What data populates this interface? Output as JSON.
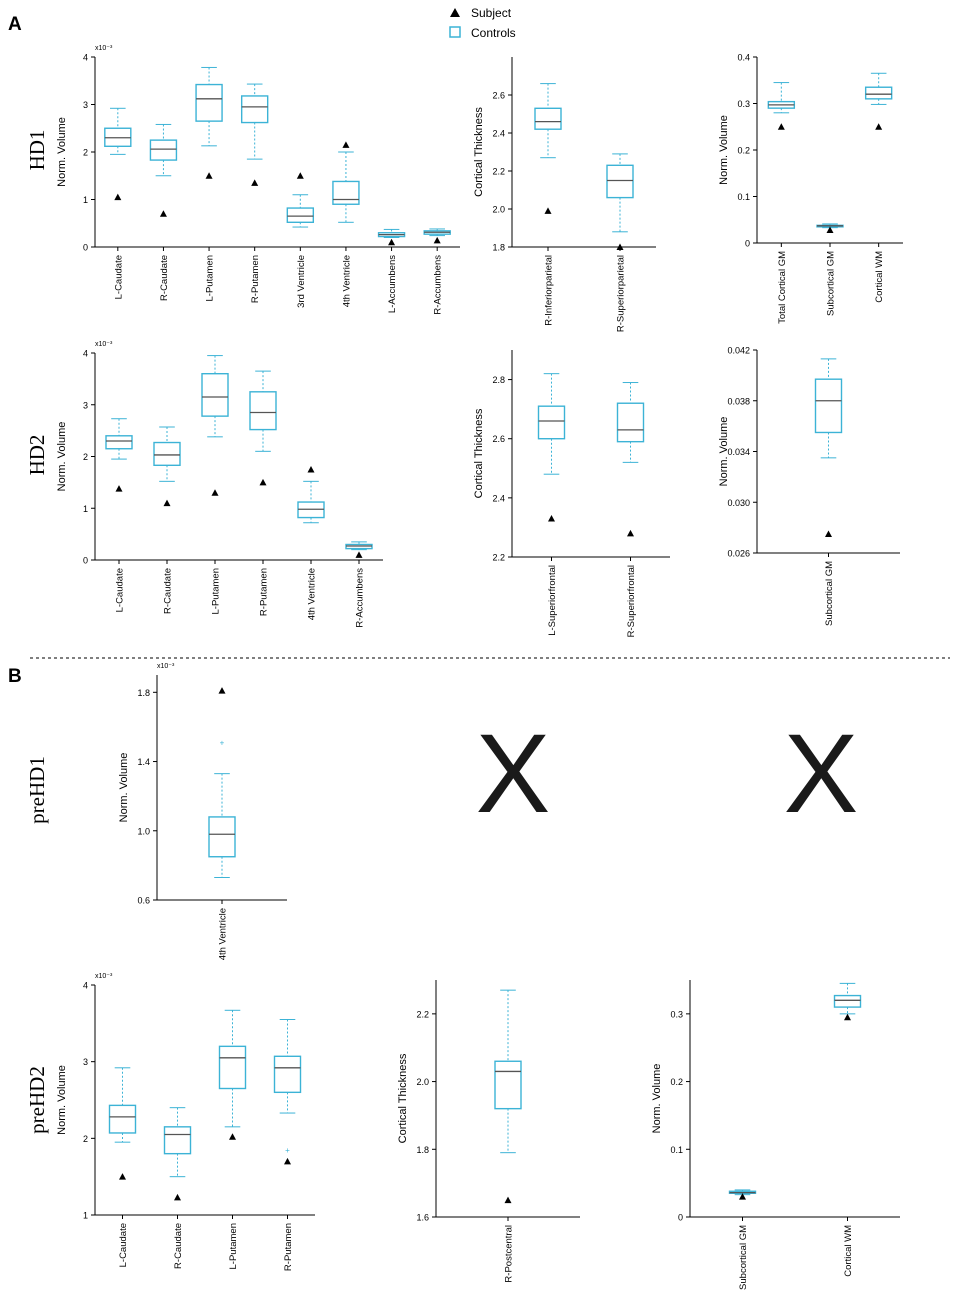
{
  "figure": {
    "panel_a_label": "A",
    "panel_b_label": "B",
    "legend": {
      "subject_label": "Subject",
      "controls_label": "Controls",
      "subject_color": "#000000",
      "controls_color": "#3cb3d6"
    },
    "row_labels": [
      "HD1",
      "HD2",
      "preHD1",
      "preHD2"
    ],
    "missing_marker": "X",
    "colors": {
      "box": "#3cb3d6",
      "median": "#555555",
      "axis": "#000000",
      "subject": "#000000"
    }
  },
  "chart_data": [
    {
      "type": "boxplot",
      "row": "HD1",
      "ylabel": "Norm. Volume",
      "exponent_label": "x10⁻³",
      "ylim": [
        0,
        4
      ],
      "yticks": [
        "0",
        "1",
        "2",
        "3",
        "4"
      ],
      "ytick_values": [
        0,
        1,
        2,
        3,
        4
      ],
      "categories": [
        "L-Caudate",
        "R-Caudate",
        "L-Putamen",
        "R-Putamen",
        "3rd Ventricle",
        "4th Ventricle",
        "L-Accumbens",
        "R-Accumbens"
      ],
      "boxes": [
        {
          "whislo": 1.95,
          "q1": 2.12,
          "med": 2.3,
          "q3": 2.5,
          "whishi": 2.92
        },
        {
          "whislo": 1.5,
          "q1": 1.83,
          "med": 2.06,
          "q3": 2.25,
          "whishi": 2.58
        },
        {
          "whislo": 2.13,
          "q1": 2.65,
          "med": 3.12,
          "q3": 3.42,
          "whishi": 3.78
        },
        {
          "whislo": 1.85,
          "q1": 2.62,
          "med": 2.95,
          "q3": 3.18,
          "whishi": 3.43
        },
        {
          "whislo": 0.42,
          "q1": 0.52,
          "med": 0.65,
          "q3": 0.82,
          "whishi": 1.1
        },
        {
          "whislo": 0.52,
          "q1": 0.9,
          "med": 1.0,
          "q3": 1.38,
          "whishi": 2.0
        },
        {
          "whislo": 0.2,
          "q1": 0.22,
          "med": 0.26,
          "q3": 0.3,
          "whishi": 0.37
        },
        {
          "whislo": 0.24,
          "q1": 0.27,
          "med": 0.31,
          "q3": 0.34,
          "whishi": 0.38
        }
      ],
      "subject": [
        1.05,
        0.7,
        1.5,
        1.35,
        1.5,
        2.15,
        0.1,
        0.14
      ]
    },
    {
      "type": "boxplot",
      "row": "HD1",
      "ylabel": "Cortical Thickness",
      "exponent_label": "",
      "ylim": [
        1.8,
        2.8
      ],
      "yticks": [
        "1.8",
        "2.0",
        "2.2",
        "2.4",
        "2.6"
      ],
      "ytick_values": [
        1.8,
        2.0,
        2.2,
        2.4,
        2.6
      ],
      "categories": [
        "R-Inferiorparietal",
        "R-Superiorparietal"
      ],
      "boxes": [
        {
          "whislo": 2.27,
          "q1": 2.42,
          "med": 2.46,
          "q3": 2.53,
          "whishi": 2.66
        },
        {
          "whislo": 1.88,
          "q1": 2.06,
          "med": 2.15,
          "q3": 2.23,
          "whishi": 2.29
        }
      ],
      "subject": [
        1.99,
        1.8
      ]
    },
    {
      "type": "boxplot",
      "row": "HD1",
      "ylabel": "Norm. Volume",
      "exponent_label": "",
      "ylim": [
        0,
        0.4
      ],
      "yticks": [
        "0",
        "0.1",
        "0.2",
        "0.3",
        "0.4"
      ],
      "ytick_values": [
        0,
        0.1,
        0.2,
        0.3,
        0.4
      ],
      "categories": [
        "Total Cortical GM",
        "Subcortical GM",
        "Cortical WM"
      ],
      "boxes": [
        {
          "whislo": 0.28,
          "q1": 0.29,
          "med": 0.297,
          "q3": 0.304,
          "whishi": 0.345
        },
        {
          "whislo": 0.033,
          "q1": 0.035,
          "med": 0.037,
          "q3": 0.038,
          "whishi": 0.041
        },
        {
          "whislo": 0.298,
          "q1": 0.31,
          "med": 0.32,
          "q3": 0.335,
          "whishi": 0.365
        }
      ],
      "subject": [
        0.25,
        0.028,
        0.25
      ]
    },
    {
      "type": "boxplot",
      "row": "HD2",
      "ylabel": "Norm. Volume",
      "exponent_label": "x10⁻³",
      "ylim": [
        0,
        4
      ],
      "yticks": [
        "0",
        "1",
        "2",
        "3",
        "4"
      ],
      "ytick_values": [
        0,
        1,
        2,
        3,
        4
      ],
      "categories": [
        "L-Caudate",
        "R-Caudate",
        "L-Putamen",
        "R-Putamen",
        "4th Ventricle",
        "R-Accumbens"
      ],
      "boxes": [
        {
          "whislo": 1.95,
          "q1": 2.15,
          "med": 2.3,
          "q3": 2.4,
          "whishi": 2.73
        },
        {
          "whislo": 1.52,
          "q1": 1.83,
          "med": 2.03,
          "q3": 2.27,
          "whishi": 2.57
        },
        {
          "whislo": 2.38,
          "q1": 2.78,
          "med": 3.15,
          "q3": 3.6,
          "whishi": 3.95
        },
        {
          "whislo": 2.1,
          "q1": 2.52,
          "med": 2.85,
          "q3": 3.25,
          "whishi": 3.65
        },
        {
          "whislo": 0.72,
          "q1": 0.82,
          "med": 0.98,
          "q3": 1.12,
          "whishi": 1.52
        },
        {
          "whislo": 0.2,
          "q1": 0.22,
          "med": 0.27,
          "q3": 0.3,
          "whishi": 0.35
        }
      ],
      "subject": [
        1.38,
        1.1,
        1.3,
        1.5,
        1.75,
        0.1
      ]
    },
    {
      "type": "boxplot",
      "row": "HD2",
      "ylabel": "Cortical Thickness",
      "exponent_label": "",
      "ylim": [
        2.2,
        2.9
      ],
      "yticks": [
        "2.2",
        "2.4",
        "2.6",
        "2.8"
      ],
      "ytick_values": [
        2.2,
        2.4,
        2.6,
        2.8
      ],
      "categories": [
        "L-Superiorfrontal",
        "R-Superiorfrontal"
      ],
      "boxes": [
        {
          "whislo": 2.48,
          "q1": 2.6,
          "med": 2.66,
          "q3": 2.71,
          "whishi": 2.82
        },
        {
          "whislo": 2.52,
          "q1": 2.59,
          "med": 2.63,
          "q3": 2.72,
          "whishi": 2.79
        }
      ],
      "subject": [
        2.33,
        2.28
      ]
    },
    {
      "type": "boxplot",
      "row": "HD2",
      "ylabel": "Norm. Volume",
      "exponent_label": "",
      "ylim": [
        0.026,
        0.042
      ],
      "yticks": [
        "0.026",
        "0.030",
        "0.034",
        "0.038",
        "0.042"
      ],
      "ytick_values": [
        0.026,
        0.03,
        0.034,
        0.038,
        0.042
      ],
      "categories": [
        "Subcortical GM"
      ],
      "boxes": [
        {
          "whislo": 0.0335,
          "q1": 0.0355,
          "med": 0.038,
          "q3": 0.0397,
          "whishi": 0.0413
        }
      ],
      "subject": [
        0.0275
      ]
    },
    {
      "type": "boxplot",
      "row": "preHD1",
      "ylabel": "Norm. Volume",
      "exponent_label": "x10⁻³",
      "ylim": [
        0.6,
        1.9
      ],
      "yticks": [
        "0.6",
        "1.0",
        "1.4",
        "1.8"
      ],
      "ytick_values": [
        0.6,
        1.0,
        1.4,
        1.8
      ],
      "categories": [
        "4th Ventricle"
      ],
      "boxes": [
        {
          "whislo": 0.73,
          "q1": 0.85,
          "med": 0.98,
          "q3": 1.08,
          "whishi": 1.33
        }
      ],
      "outliers": [
        [
          1.51
        ]
      ],
      "subject": [
        1.81
      ]
    },
    {
      "type": "boxplot",
      "row": "preHD2",
      "ylabel": "Norm. Volume",
      "exponent_label": "x10⁻³",
      "ylim": [
        1,
        4
      ],
      "yticks": [
        "1",
        "2",
        "3",
        "4"
      ],
      "ytick_values": [
        1,
        2,
        3,
        4
      ],
      "categories": [
        "L-Caudate",
        "R-Caudate",
        "L-Putamen",
        "R-Putamen"
      ],
      "boxes": [
        {
          "whislo": 1.95,
          "q1": 2.07,
          "med": 2.28,
          "q3": 2.43,
          "whishi": 2.92
        },
        {
          "whislo": 1.5,
          "q1": 1.8,
          "med": 2.05,
          "q3": 2.15,
          "whishi": 2.4
        },
        {
          "whislo": 2.15,
          "q1": 2.65,
          "med": 3.05,
          "q3": 3.2,
          "whishi": 3.67
        },
        {
          "whislo": 2.33,
          "q1": 2.6,
          "med": 2.92,
          "q3": 3.07,
          "whishi": 3.55
        }
      ],
      "outliers": [
        [],
        [],
        [],
        [
          1.85
        ]
      ],
      "subject": [
        1.5,
        1.23,
        2.02,
        1.7
      ]
    },
    {
      "type": "boxplot",
      "row": "preHD2",
      "ylabel": "Cortical Thickness",
      "exponent_label": "",
      "ylim": [
        1.6,
        2.3
      ],
      "yticks": [
        "1.6",
        "1.8",
        "2.0",
        "2.2"
      ],
      "ytick_values": [
        1.6,
        1.8,
        2.0,
        2.2
      ],
      "categories": [
        "R-Postcentral"
      ],
      "boxes": [
        {
          "whislo": 1.79,
          "q1": 1.92,
          "med": 2.03,
          "q3": 2.06,
          "whishi": 2.27
        }
      ],
      "subject": [
        1.65
      ]
    },
    {
      "type": "boxplot",
      "row": "preHD2",
      "ylabel": "Norm. Volume",
      "exponent_label": "",
      "ylim": [
        0,
        0.35
      ],
      "yticks": [
        "0",
        "0.1",
        "0.2",
        "0.3"
      ],
      "ytick_values": [
        0,
        0.1,
        0.2,
        0.3
      ],
      "categories": [
        "Subcortical GM",
        "Cortical WM"
      ],
      "boxes": [
        {
          "whislo": 0.033,
          "q1": 0.035,
          "med": 0.036,
          "q3": 0.038,
          "whishi": 0.04
        },
        {
          "whislo": 0.3,
          "q1": 0.31,
          "med": 0.32,
          "q3": 0.327,
          "whishi": 0.345
        }
      ],
      "subject": [
        0.03,
        0.295
      ]
    }
  ]
}
